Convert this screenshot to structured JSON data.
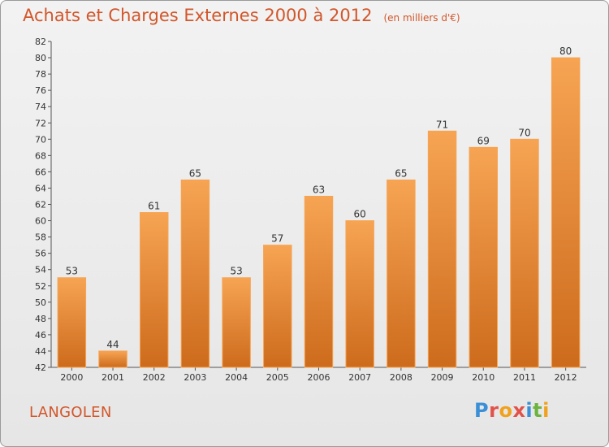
{
  "chart_data": {
    "type": "bar",
    "title": "Achats et Charges Externes 2000 à 2012",
    "units_note": "(en milliers d'€)",
    "categories": [
      "2000",
      "2001",
      "2002",
      "2003",
      "2004",
      "2005",
      "2006",
      "2007",
      "2008",
      "2009",
      "2010",
      "2011",
      "2012"
    ],
    "values": [
      53,
      44,
      61,
      65,
      53,
      57,
      63,
      60,
      65,
      71,
      69,
      70,
      80
    ],
    "ylim": [
      42,
      82
    ],
    "ytick_step": 2,
    "grid": false,
    "bar_color": "#f0923e",
    "bar_color_light": "#f6a453",
    "bar_color_dark": "#cd6b1c"
  },
  "footer": {
    "location": "LANGOLEN",
    "logo_text": "Proxiti",
    "logo_letters": [
      {
        "ch": "P",
        "color": "#3a8fd6"
      },
      {
        "ch": "r",
        "color": "#e2524a"
      },
      {
        "ch": "o",
        "color": "#f0a21d"
      },
      {
        "ch": "x",
        "color": "#e2524a"
      },
      {
        "ch": "i",
        "color": "#3a8fd6"
      },
      {
        "ch": "t",
        "color": "#6cb43f"
      },
      {
        "ch": "i",
        "color": "#f0a21d"
      }
    ]
  }
}
